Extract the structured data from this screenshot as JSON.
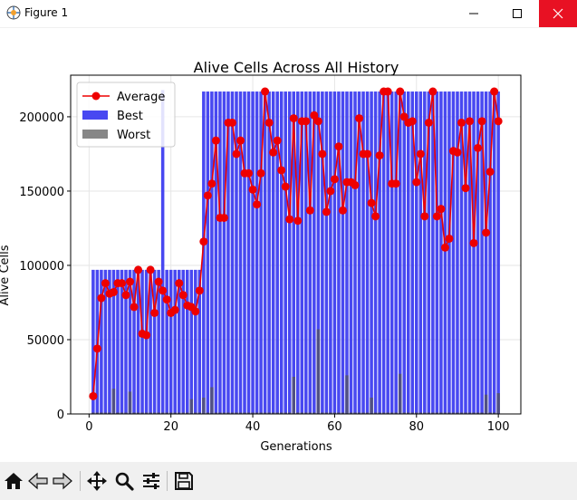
{
  "window": {
    "title": "Figure 1"
  },
  "toolbar": {
    "buttons": [
      "home-icon",
      "back-icon",
      "forward-icon",
      "pan-icon",
      "zoom-icon",
      "configure-icon",
      "save-icon"
    ]
  },
  "colors": {
    "best": "#3434f0",
    "worst": "#545454",
    "average": "#ee0000",
    "close": "#e81123"
  },
  "chart_data": {
    "type": "bar",
    "title": "Alive Cells Across All History",
    "xlabel": "Generations",
    "ylabel": "Alive Cells",
    "xlim": [
      -4.5,
      105.5
    ],
    "ylim": [
      0,
      228000
    ],
    "xticks": [
      0,
      20,
      40,
      60,
      80,
      100
    ],
    "xtick_labels": [
      "0",
      "20",
      "40",
      "60",
      "80",
      "100"
    ],
    "yticks": [
      0,
      50000,
      100000,
      150000,
      200000
    ],
    "ytick_labels": [
      "0",
      "50000",
      "100000",
      "150000",
      "200000"
    ],
    "grid": true,
    "legend_position": "upper-left",
    "legend": [
      "Average",
      "Best",
      "Worst"
    ],
    "x": [
      1,
      2,
      3,
      4,
      5,
      6,
      7,
      8,
      9,
      10,
      11,
      12,
      13,
      14,
      15,
      16,
      17,
      18,
      19,
      20,
      21,
      22,
      23,
      24,
      25,
      26,
      27,
      28,
      29,
      30,
      31,
      32,
      33,
      34,
      35,
      36,
      37,
      38,
      39,
      40,
      41,
      42,
      43,
      44,
      45,
      46,
      47,
      48,
      49,
      50,
      51,
      52,
      53,
      54,
      55,
      56,
      57,
      58,
      59,
      60,
      61,
      62,
      63,
      64,
      65,
      66,
      67,
      68,
      69,
      70,
      71,
      72,
      73,
      74,
      75,
      76,
      77,
      78,
      79,
      80,
      81,
      82,
      83,
      84,
      85,
      86,
      87,
      88,
      89,
      90,
      91,
      92,
      93,
      94,
      95,
      96,
      97,
      98,
      99,
      100
    ],
    "series": [
      {
        "name": "Best",
        "kind": "bar",
        "values": [
          97000,
          97000,
          97000,
          97000,
          97000,
          97000,
          97000,
          97000,
          97000,
          97000,
          97000,
          97000,
          97000,
          97000,
          97000,
          97000,
          97000,
          218000,
          97000,
          97000,
          97000,
          97000,
          97000,
          97000,
          97000,
          97000,
          97000,
          217000,
          217000,
          217000,
          217000,
          217000,
          217000,
          217000,
          217000,
          217000,
          217000,
          217000,
          217000,
          217000,
          217000,
          217000,
          217000,
          217000,
          217000,
          217000,
          217000,
          217000,
          217000,
          217000,
          217000,
          217000,
          217000,
          217000,
          217000,
          217000,
          217000,
          217000,
          217000,
          217000,
          217000,
          217000,
          217000,
          217000,
          217000,
          217000,
          217000,
          217000,
          217000,
          217000,
          217000,
          217000,
          217000,
          217000,
          217000,
          217000,
          217000,
          217000,
          217000,
          217000,
          217000,
          217000,
          217000,
          217000,
          217000,
          217000,
          217000,
          217000,
          217000,
          217000,
          217000,
          217000,
          217000,
          217000,
          217000,
          217000,
          217000,
          217000,
          217000,
          217000
        ]
      },
      {
        "name": "Worst",
        "kind": "bar",
        "values": [
          1000,
          1000,
          1000,
          1000,
          1000,
          17000,
          1000,
          1000,
          1000,
          15000,
          1000,
          1000,
          1000,
          1000,
          1000,
          1000,
          1000,
          1000,
          1000,
          1000,
          1000,
          1000,
          1000,
          1000,
          10000,
          1000,
          1000,
          11000,
          1000,
          18000,
          1000,
          1000,
          1000,
          1000,
          1000,
          1000,
          1000,
          1000,
          1000,
          1000,
          1000,
          1000,
          1000,
          1000,
          1000,
          1000,
          1000,
          1000,
          1000,
          25000,
          1000,
          1000,
          1000,
          1000,
          1000,
          57000,
          1000,
          1000,
          1000,
          1000,
          1000,
          1000,
          26000,
          1000,
          1000,
          1000,
          1000,
          1000,
          11000,
          1000,
          1000,
          1000,
          1000,
          1000,
          1000,
          27000,
          1000,
          1000,
          1000,
          1000,
          1000,
          1000,
          1000,
          1000,
          1000,
          1000,
          1000,
          1000,
          1000,
          1000,
          1000,
          1000,
          1000,
          1000,
          1000,
          1000,
          13000,
          1000,
          1000,
          14000
        ]
      },
      {
        "name": "Average",
        "kind": "line",
        "values": [
          12000,
          44000,
          78000,
          88000,
          81000,
          82000,
          88000,
          88000,
          80000,
          89000,
          72000,
          97000,
          54000,
          53000,
          97000,
          68000,
          89000,
          83000,
          77000,
          68000,
          70000,
          88000,
          80000,
          73000,
          72000,
          69000,
          83000,
          116000,
          147000,
          155000,
          184000,
          132000,
          132000,
          196000,
          196000,
          175000,
          184000,
          162000,
          162000,
          151000,
          141000,
          162000,
          217000,
          196000,
          176000,
          184000,
          164000,
          153000,
          131000,
          199000,
          130000,
          197000,
          197000,
          137000,
          201000,
          197000,
          175000,
          136000,
          150000,
          158000,
          180000,
          137000,
          156000,
          156000,
          154000,
          199000,
          175000,
          175000,
          142000,
          133000,
          174000,
          217000,
          217000,
          155000,
          155000,
          217000,
          200000,
          196000,
          197000,
          156000,
          175000,
          133000,
          196000,
          217000,
          133000,
          138000,
          112000,
          118000,
          177000,
          176000,
          196000,
          152000,
          197000,
          115000,
          179000,
          197000,
          122000,
          163000,
          217000,
          197000
        ]
      }
    ]
  }
}
